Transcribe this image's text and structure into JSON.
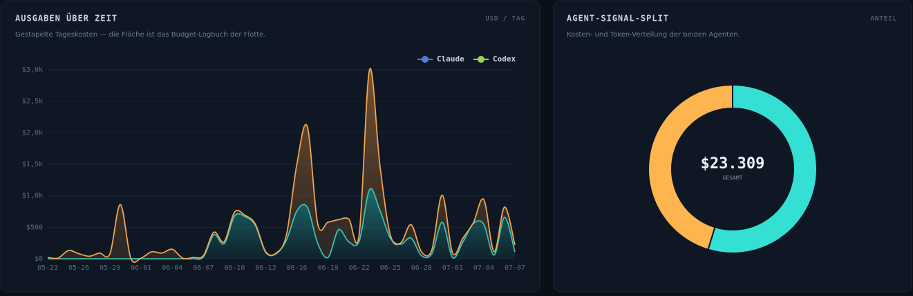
{
  "panels": [
    {
      "title": "AUSGABEN ÜBER ZEIT",
      "badge": "USD / TAG",
      "subtitle": "Gestapelte Tageskosten — die Fläche ist das Budget-Logbuch der Flotte.",
      "chart_data": {
        "type": "area",
        "stacked": true,
        "grid": true,
        "legend": "top-right",
        "categories": [
          "05-23",
          null,
          null,
          "05-26",
          null,
          null,
          "05-29",
          null,
          null,
          "06-01",
          null,
          null,
          "06-04",
          null,
          null,
          "06-07",
          null,
          null,
          "06-10",
          null,
          null,
          "06-13",
          null,
          null,
          "06-16",
          null,
          null,
          "06-19",
          null,
          null,
          "06-22",
          null,
          null,
          "06-25",
          null,
          null,
          "06-28",
          null,
          null,
          "07-01",
          null,
          null,
          "07-04",
          null,
          null,
          "07-07"
        ],
        "ylim": [
          0,
          3000
        ],
        "yticks": [
          {
            "value": 0,
            "label": "$0"
          },
          {
            "value": 500,
            "label": "$500"
          },
          {
            "value": 1000,
            "label": "$1,0k"
          },
          {
            "value": 1500,
            "label": "$1,5k"
          },
          {
            "value": 2000,
            "label": "$2,0k"
          },
          {
            "value": 2500,
            "label": "$2,5k"
          },
          {
            "value": 3000,
            "label": "$3,0k"
          }
        ],
        "series": [
          {
            "name": "Claude",
            "color": "#2fd6c8",
            "legend_color": "#4a7fd4",
            "values": [
              0,
              0,
              0,
              0,
              0,
              0,
              0,
              0,
              0,
              0,
              0,
              0,
              0,
              0,
              0,
              30,
              380,
              240,
              680,
              670,
              530,
              100,
              80,
              300,
              760,
              820,
              250,
              20,
              460,
              270,
              280,
              1100,
              770,
              330,
              230,
              330,
              50,
              80,
              580,
              20,
              270,
              560,
              550,
              60,
              660,
              110
            ]
          },
          {
            "name": "Codex",
            "color": "#f0a451",
            "legend_color": "#9ad45a",
            "values": [
              20,
              10,
              130,
              80,
              40,
              90,
              80,
              860,
              10,
              10,
              110,
              90,
              150,
              10,
              20,
              20,
              40,
              30,
              60,
              20,
              20,
              10,
              10,
              80,
              740,
              1280,
              310,
              560,
              160,
              360,
              100,
              1900,
              710,
              50,
              20,
              210,
              60,
              60,
              430,
              70,
              60,
              10,
              390,
              50,
              160,
              110
            ]
          }
        ]
      }
    },
    {
      "title": "AGENT-SIGNAL-SPLIT",
      "badge": "ANTEIL",
      "subtitle": "Kosten- und Token-Verteilung der beiden Agenten.",
      "chart_data": {
        "type": "donut",
        "values": [
          54.7,
          45.3
        ],
        "colors": [
          "#34e0d4",
          "#ffb54f"
        ],
        "center_label": "$23.309",
        "center_sublabel": "GESAMT"
      }
    }
  ]
}
